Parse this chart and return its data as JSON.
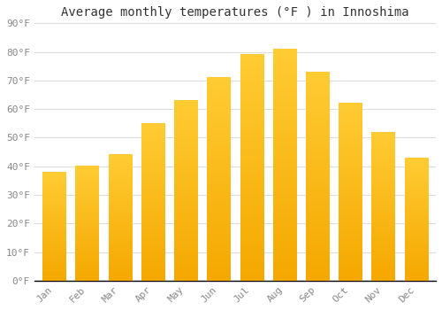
{
  "title": "Average monthly temperatures (°F ) in Innoshima",
  "months": [
    "Jan",
    "Feb",
    "Mar",
    "Apr",
    "May",
    "Jun",
    "Jul",
    "Aug",
    "Sep",
    "Oct",
    "Nov",
    "Dec"
  ],
  "values": [
    38,
    40,
    44,
    55,
    63,
    71,
    79,
    81,
    73,
    62,
    52,
    43
  ],
  "bar_color_top": "#FFCC33",
  "bar_color_bottom": "#F5A800",
  "ylim": [
    0,
    90
  ],
  "yticks": [
    0,
    10,
    20,
    30,
    40,
    50,
    60,
    70,
    80,
    90
  ],
  "ytick_labels": [
    "0°F",
    "10°F",
    "20°F",
    "30°F",
    "40°F",
    "50°F",
    "60°F",
    "70°F",
    "80°F",
    "90°F"
  ],
  "bg_color": "#ffffff",
  "plot_bg_color": "#ffffff",
  "grid_color": "#dddddd",
  "title_fontsize": 10,
  "tick_fontsize": 8,
  "font_family": "monospace",
  "tick_color": "#888888",
  "spine_color": "#000000"
}
